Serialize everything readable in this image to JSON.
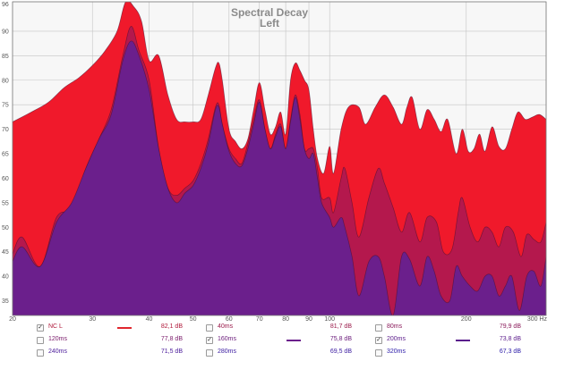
{
  "chart_data": {
    "type": "area",
    "title": "Spectral Decay",
    "subtitle": "Left",
    "x_scale": "log",
    "xlim": [
      20,
      300
    ],
    "ylim": [
      32,
      96
    ],
    "x_ticks": [
      {
        "value": 20,
        "label": "20"
      },
      {
        "value": 30,
        "label": "30"
      },
      {
        "value": 40,
        "label": "40"
      },
      {
        "value": 50,
        "label": "50"
      },
      {
        "value": 60,
        "label": "60"
      },
      {
        "value": 70,
        "label": "70"
      },
      {
        "value": 80,
        "label": "80"
      },
      {
        "value": 90,
        "label": "90"
      },
      {
        "value": 100,
        "label": "100"
      },
      {
        "value": 200,
        "label": "200"
      },
      {
        "value": 300,
        "label": "300 Hz"
      }
    ],
    "y_ticks": [
      {
        "value": 96,
        "label": "96"
      },
      {
        "value": 90,
        "label": "90"
      },
      {
        "value": 85,
        "label": "85"
      },
      {
        "value": 80,
        "label": "80"
      },
      {
        "value": 75,
        "label": "75"
      },
      {
        "value": 70,
        "label": "70"
      },
      {
        "value": 65,
        "label": "65"
      },
      {
        "value": 60,
        "label": "60"
      },
      {
        "value": 55,
        "label": "55"
      },
      {
        "value": 50,
        "label": "50"
      },
      {
        "value": 45,
        "label": "45"
      },
      {
        "value": 40,
        "label": "40"
      },
      {
        "value": 35,
        "label": "35"
      }
    ],
    "grid": true,
    "series": [
      {
        "name": "NC L",
        "color": "#f0192b",
        "fill_opacity": 1,
        "points": [
          [
            20,
            71.5
          ],
          [
            22,
            73.5
          ],
          [
            24,
            75.5
          ],
          [
            26,
            78.5
          ],
          [
            28,
            80.5
          ],
          [
            30,
            83
          ],
          [
            32,
            86
          ],
          [
            34,
            90
          ],
          [
            35.5,
            96
          ],
          [
            37,
            95
          ],
          [
            38.5,
            92
          ],
          [
            40,
            84
          ],
          [
            42,
            85
          ],
          [
            44,
            77
          ],
          [
            46,
            72
          ],
          [
            48,
            71.5
          ],
          [
            50,
            71.5
          ],
          [
            52,
            72
          ],
          [
            54,
            77
          ],
          [
            56,
            82.5
          ],
          [
            57,
            83.5
          ],
          [
            58,
            80
          ],
          [
            60,
            70
          ],
          [
            62,
            67.5
          ],
          [
            64,
            66
          ],
          [
            66,
            68
          ],
          [
            68,
            74
          ],
          [
            70,
            79.5
          ],
          [
            72,
            74
          ],
          [
            74,
            69
          ],
          [
            76,
            70.5
          ],
          [
            78,
            73.5
          ],
          [
            80,
            69
          ],
          [
            82,
            80
          ],
          [
            84,
            83.5
          ],
          [
            86,
            82
          ],
          [
            88,
            80
          ],
          [
            90,
            78
          ],
          [
            92,
            70
          ],
          [
            94,
            64
          ],
          [
            97,
            61
          ],
          [
            100,
            66.5
          ],
          [
            102,
            61
          ],
          [
            106,
            70
          ],
          [
            110,
            74.5
          ],
          [
            116,
            74.5
          ],
          [
            120,
            71
          ],
          [
            126,
            74.5
          ],
          [
            132,
            77
          ],
          [
            138,
            74.5
          ],
          [
            144,
            71
          ],
          [
            148,
            74.5
          ],
          [
            152,
            76.5
          ],
          [
            158,
            70
          ],
          [
            164,
            74
          ],
          [
            170,
            72
          ],
          [
            176,
            69.5
          ],
          [
            182,
            72
          ],
          [
            190,
            65
          ],
          [
            196,
            70
          ],
          [
            202,
            65.5
          ],
          [
            208,
            66
          ],
          [
            214,
            69
          ],
          [
            220,
            65.5
          ],
          [
            228,
            70.5
          ],
          [
            236,
            66.5
          ],
          [
            244,
            66
          ],
          [
            252,
            70
          ],
          [
            260,
            73.5
          ],
          [
            270,
            72
          ],
          [
            280,
            72.5
          ],
          [
            290,
            73
          ],
          [
            300,
            72
          ]
        ]
      },
      {
        "name": "40ms",
        "color": "#a0185a",
        "fill_opacity": 0.75,
        "points": [
          [
            20,
            44.5
          ],
          [
            21,
            48
          ],
          [
            23,
            42
          ],
          [
            25,
            52
          ],
          [
            27,
            54
          ],
          [
            29,
            62
          ],
          [
            31,
            68
          ],
          [
            33,
            74
          ],
          [
            35,
            85
          ],
          [
            36.5,
            91
          ],
          [
            38,
            86
          ],
          [
            40,
            80
          ],
          [
            42,
            66
          ],
          [
            44,
            58
          ],
          [
            46,
            56.5
          ],
          [
            48,
            58
          ],
          [
            50,
            59.5
          ],
          [
            52,
            63
          ],
          [
            54,
            68
          ],
          [
            56,
            74.5
          ],
          [
            57,
            75
          ],
          [
            58,
            71
          ],
          [
            60,
            66
          ],
          [
            62,
            64
          ],
          [
            64,
            63
          ],
          [
            66,
            67
          ],
          [
            68,
            72
          ],
          [
            70,
            76
          ],
          [
            72,
            70
          ],
          [
            74,
            66
          ],
          [
            76,
            69
          ],
          [
            78,
            71
          ],
          [
            80,
            66
          ],
          [
            82,
            72
          ],
          [
            84,
            77
          ],
          [
            86,
            73
          ],
          [
            88,
            66
          ],
          [
            90,
            66
          ],
          [
            92,
            66
          ],
          [
            94,
            62
          ],
          [
            96,
            56
          ],
          [
            100,
            56
          ],
          [
            102,
            53
          ],
          [
            106,
            60
          ],
          [
            108,
            62
          ],
          [
            112,
            55
          ],
          [
            116,
            48
          ],
          [
            122,
            56
          ],
          [
            128,
            62
          ],
          [
            132,
            59
          ],
          [
            138,
            54
          ],
          [
            144,
            49
          ],
          [
            150,
            53
          ],
          [
            158,
            47
          ],
          [
            164,
            52
          ],
          [
            172,
            51
          ],
          [
            178,
            45
          ],
          [
            186,
            45.5
          ],
          [
            192,
            53
          ],
          [
            196,
            56
          ],
          [
            204,
            50
          ],
          [
            212,
            47
          ],
          [
            220,
            50
          ],
          [
            228,
            49
          ],
          [
            236,
            46
          ],
          [
            244,
            50
          ],
          [
            254,
            49
          ],
          [
            264,
            44
          ],
          [
            272,
            48.5
          ],
          [
            282,
            47.5
          ],
          [
            292,
            47
          ],
          [
            300,
            51
          ]
        ]
      },
      {
        "name": "160ms",
        "color": "#6b1f8c",
        "fill_opacity": 1,
        "points": [
          [
            20,
            43
          ],
          [
            21,
            46
          ],
          [
            23,
            42
          ],
          [
            25,
            51
          ],
          [
            27,
            55
          ],
          [
            29,
            62
          ],
          [
            31,
            68
          ],
          [
            33,
            73
          ],
          [
            35,
            84
          ],
          [
            36.5,
            88
          ],
          [
            38,
            85
          ],
          [
            40,
            78
          ],
          [
            42,
            66
          ],
          [
            44,
            58
          ],
          [
            46,
            55
          ],
          [
            48,
            57
          ],
          [
            50,
            58.5
          ],
          [
            52,
            62
          ],
          [
            54,
            67
          ],
          [
            56,
            74
          ],
          [
            57,
            74.5
          ],
          [
            58,
            71
          ],
          [
            60,
            65.5
          ],
          [
            62,
            63
          ],
          [
            64,
            62.5
          ],
          [
            66,
            66
          ],
          [
            68,
            71
          ],
          [
            70,
            75.5
          ],
          [
            72,
            70
          ],
          [
            74,
            66
          ],
          [
            76,
            68.5
          ],
          [
            78,
            70.5
          ],
          [
            80,
            66
          ],
          [
            82,
            71.5
          ],
          [
            84,
            76.5
          ],
          [
            86,
            72
          ],
          [
            88,
            66
          ],
          [
            90,
            64
          ],
          [
            92,
            65
          ],
          [
            94,
            60
          ],
          [
            96,
            55
          ],
          [
            100,
            52
          ],
          [
            102,
            50
          ],
          [
            106,
            52
          ],
          [
            108,
            50
          ],
          [
            112,
            44
          ],
          [
            116,
            36
          ],
          [
            122,
            43
          ],
          [
            128,
            44
          ],
          [
            132,
            40
          ],
          [
            138,
            32
          ],
          [
            144,
            44
          ],
          [
            150,
            43.5
          ],
          [
            158,
            38
          ],
          [
            164,
            44
          ],
          [
            170,
            41
          ],
          [
            176,
            36
          ],
          [
            184,
            35
          ],
          [
            190,
            42
          ],
          [
            196,
            40
          ],
          [
            204,
            38
          ],
          [
            212,
            37
          ],
          [
            220,
            40
          ],
          [
            228,
            40
          ],
          [
            236,
            36
          ],
          [
            244,
            38
          ],
          [
            252,
            40
          ],
          [
            262,
            33
          ],
          [
            272,
            40
          ],
          [
            282,
            41
          ],
          [
            292,
            38
          ],
          [
            300,
            44
          ]
        ]
      }
    ]
  },
  "legend": {
    "rows": [
      [
        {
          "name": "NC L",
          "checked": true,
          "line_color": "#e0272e",
          "value": "82,1 dB",
          "text_color": "#b0193a"
        },
        {
          "name": "40ms",
          "checked": false,
          "line_color": "",
          "value": "81,7 dB",
          "text_color": "#9a1a4a"
        },
        {
          "name": "80ms",
          "checked": false,
          "line_color": "",
          "value": "79,9 dB",
          "text_color": "#8a1a5a"
        }
      ],
      [
        {
          "name": "120ms",
          "checked": false,
          "line_color": "",
          "value": "77,8 dB",
          "text_color": "#7a1a6a"
        },
        {
          "name": "160ms",
          "checked": true,
          "line_color": "#6b1f8c",
          "value": "75,8 dB",
          "text_color": "#6a1a7a"
        },
        {
          "name": "200ms",
          "checked": true,
          "line_color": "#5a1e8c",
          "value": "73,8 dB",
          "text_color": "#5a1a8a"
        }
      ],
      [
        {
          "name": "240ms",
          "checked": false,
          "line_color": "",
          "value": "71,5 dB",
          "text_color": "#4a1a9a"
        },
        {
          "name": "280ms",
          "checked": false,
          "line_color": "",
          "value": "69,5 dB",
          "text_color": "#3a1aa0"
        },
        {
          "name": "320ms",
          "checked": false,
          "line_color": "",
          "value": "67,3 dB",
          "text_color": "#2a1aa8"
        }
      ]
    ]
  }
}
